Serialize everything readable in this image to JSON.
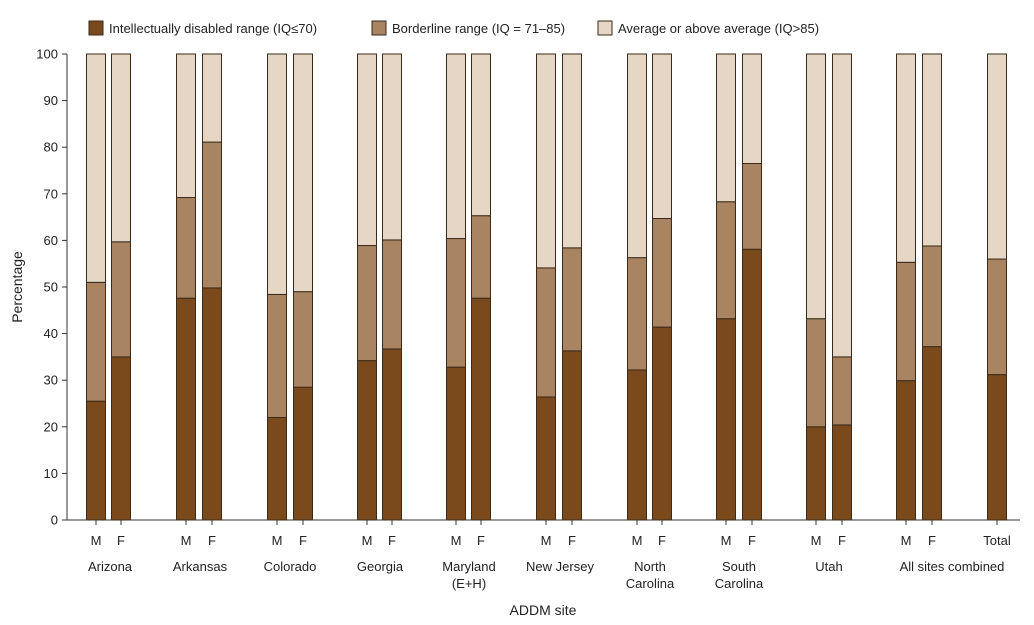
{
  "chart_data": {
    "type": "bar",
    "stacked": true,
    "title": "",
    "xlabel": "ADDM site",
    "ylabel": "Percentage",
    "ylim": [
      0,
      100
    ],
    "yticks": [
      0,
      10,
      20,
      30,
      40,
      50,
      60,
      70,
      80,
      90,
      100
    ],
    "grid": false,
    "legend_position": "top",
    "series": [
      {
        "name": "Intellectually disabled range (IQ≤70)",
        "color": "#7a4a1c"
      },
      {
        "name": "Borderline range (IQ = 71–85)",
        "color": "#a98462"
      },
      {
        "name": "Average or above average (IQ>85)",
        "color": "#e5d6c6"
      }
    ],
    "groups": [
      {
        "label": "Arizona",
        "bars": [
          {
            "label": "M",
            "values": [
              25.5,
              25.5,
              49.0
            ]
          },
          {
            "label": "F",
            "values": [
              35.0,
              24.7,
              40.3
            ]
          }
        ]
      },
      {
        "label": "Arkansas",
        "bars": [
          {
            "label": "M",
            "values": [
              47.6,
              21.6,
              30.8
            ]
          },
          {
            "label": "F",
            "values": [
              49.8,
              31.3,
              18.9
            ]
          }
        ]
      },
      {
        "label": "Colorado",
        "bars": [
          {
            "label": "M",
            "values": [
              22.0,
              26.4,
              51.6
            ]
          },
          {
            "label": "F",
            "values": [
              28.5,
              20.5,
              51.0
            ]
          }
        ]
      },
      {
        "label": "Georgia",
        "bars": [
          {
            "label": "M",
            "values": [
              34.2,
              24.7,
              41.1
            ]
          },
          {
            "label": "F",
            "values": [
              36.7,
              23.4,
              39.9
            ]
          }
        ]
      },
      {
        "label": "Maryland (E+H)",
        "bars": [
          {
            "label": "M",
            "values": [
              32.8,
              27.6,
              39.6
            ]
          },
          {
            "label": "F",
            "values": [
              47.6,
              17.7,
              34.7
            ]
          }
        ]
      },
      {
        "label": "New Jersey",
        "bars": [
          {
            "label": "M",
            "values": [
              26.4,
              27.7,
              45.9
            ]
          },
          {
            "label": "F",
            "values": [
              36.3,
              22.1,
              41.6
            ]
          }
        ]
      },
      {
        "label": "North Carolina",
        "bars": [
          {
            "label": "M",
            "values": [
              32.2,
              24.1,
              43.7
            ]
          },
          {
            "label": "F",
            "values": [
              41.4,
              23.3,
              35.3
            ]
          }
        ]
      },
      {
        "label": "South Carolina",
        "bars": [
          {
            "label": "M",
            "values": [
              43.2,
              25.1,
              31.7
            ]
          },
          {
            "label": "F",
            "values": [
              58.1,
              18.4,
              23.5
            ]
          }
        ]
      },
      {
        "label": "Utah",
        "bars": [
          {
            "label": "M",
            "values": [
              20.0,
              23.2,
              56.8
            ]
          },
          {
            "label": "F",
            "values": [
              20.4,
              14.6,
              65.0
            ]
          }
        ]
      },
      {
        "label": "All sites combined",
        "bars": [
          {
            "label": "M",
            "values": [
              29.9,
              25.4,
              44.7
            ]
          },
          {
            "label": "F",
            "values": [
              37.2,
              21.6,
              41.2
            ]
          }
        ]
      },
      {
        "label": "",
        "bars": [
          {
            "label": "Total",
            "values": [
              31.2,
              24.8,
              44.0
            ]
          }
        ]
      }
    ]
  }
}
